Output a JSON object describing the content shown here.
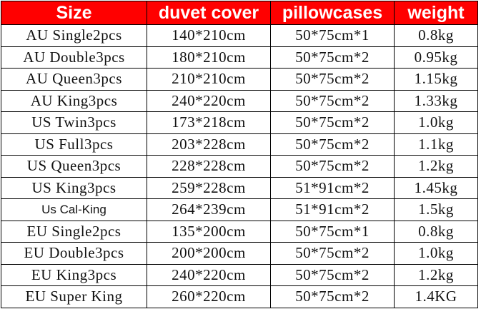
{
  "header": {
    "color": "#ff0000",
    "columns": [
      "Size",
      "duvet cover",
      "pillowcases",
      "weight"
    ]
  },
  "rows": [
    {
      "size": "AU Single2pcs",
      "duvet": "140*210cm",
      "pillow": "50*75cm*1",
      "weight": "0.8kg"
    },
    {
      "size": "AU Double3pcs",
      "duvet": "180*210cm",
      "pillow": "50*75cm*2",
      "weight": "0.95kg"
    },
    {
      "size": "AU Queen3pcs",
      "duvet": "210*210cm",
      "pillow": "50*75cm*2",
      "weight": "1.15kg"
    },
    {
      "size": "AU King3pcs",
      "duvet": "240*220cm",
      "pillow": "50*75cm*2",
      "weight": "1.33kg"
    },
    {
      "size": "US Twin3pcs",
      "duvet": "173*218cm",
      "pillow": "50*75cm*2",
      "weight": "1.0kg"
    },
    {
      "size": "US Full3pcs",
      "duvet": "203*228cm",
      "pillow": "50*75cm*2",
      "weight": "1.1kg"
    },
    {
      "size": "US Queen3pcs",
      "duvet": "228*228cm",
      "pillow": "50*75cm*2",
      "weight": "1.2kg"
    },
    {
      "size": "US King3pcs",
      "duvet": "259*228cm",
      "pillow": "51*91cm*2",
      "weight": "1.45kg"
    },
    {
      "size": "Us Cal-King",
      "duvet": "264*239cm",
      "pillow": "51*91cm*2",
      "weight": "1.5kg"
    },
    {
      "size": "EU Single2pcs",
      "duvet": "135*200cm",
      "pillow": "50*75cm*1",
      "weight": "0.8kg"
    },
    {
      "size": "EU Double3pcs",
      "duvet": "200*200cm",
      "pillow": "50*75cm*2",
      "weight": "1.0kg"
    },
    {
      "size": "EU King3pcs",
      "duvet": "240*220cm",
      "pillow": "50*75cm*2",
      "weight": "1.2kg"
    },
    {
      "size": "EU Super King",
      "duvet": "260*220cm",
      "pillow": "50*75cm*2",
      "weight": "1.4KG"
    }
  ]
}
